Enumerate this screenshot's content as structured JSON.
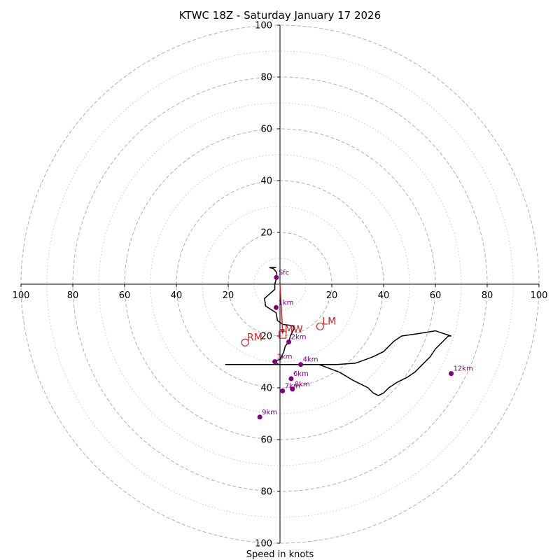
{
  "chart_data": {
    "type": "line",
    "title": "KTWC 18Z - Saturday January 17 2026",
    "xlabel": "Speed in knots",
    "ylabel": "",
    "xlim": [
      -100,
      100
    ],
    "ylim": [
      -100,
      100
    ],
    "rings_major": [
      20,
      40,
      60,
      80,
      100
    ],
    "rings_minor": [
      10,
      30,
      50,
      70,
      90
    ],
    "x_tick_labels": [
      "100",
      "80",
      "60",
      "40",
      "20",
      "20",
      "40",
      "60",
      "80",
      "100"
    ],
    "x_tick_values": [
      -100,
      -80,
      -60,
      -40,
      -20,
      20,
      40,
      60,
      80,
      100
    ],
    "y_tick_labels": [
      "100",
      "80",
      "60",
      "40",
      "20",
      "20",
      "40",
      "60",
      "80",
      "100"
    ],
    "y_tick_values": [
      100,
      80,
      60,
      40,
      20,
      -20,
      -40,
      -60,
      -80,
      -100
    ],
    "hodograph": {
      "u": [
        -1.5,
        -4,
        -2.5,
        -1.3,
        -1.2,
        -2,
        -2,
        -6,
        -5.5,
        -1.5,
        -1,
        1,
        5,
        5.5,
        4,
        3.5,
        2,
        1.5,
        1,
        0.5,
        0.3,
        -1.5,
        -2,
        -0.5,
        8,
        22,
        29,
        32,
        36,
        40,
        42,
        44,
        47,
        54,
        60,
        66,
        65,
        60,
        58,
        55,
        52,
        49,
        45,
        42,
        40,
        38,
        36,
        34,
        28,
        23,
        15,
        6,
        3,
        3,
        2,
        0,
        -1,
        -3,
        -4,
        -6,
        -8,
        -10,
        -12,
        -16,
        -18,
        -19.5,
        -21,
        -19,
        -15,
        -11,
        -8,
        -4,
        2,
        4,
        5,
        6,
        5
      ],
      "v": [
        6.4,
        6.4,
        6,
        4.5,
        3,
        0,
        -2,
        -5.5,
        -8.5,
        -11,
        -14,
        -15.5,
        -16,
        -17,
        -20,
        -22,
        -24,
        -26,
        -27,
        -28,
        -29,
        -29.5,
        -30,
        -31,
        -31,
        -31,
        -30.5,
        -29.5,
        -28,
        -26,
        -24,
        -22,
        -20,
        -19,
        -18,
        -20,
        -20,
        -25,
        -28,
        -31,
        -34,
        -36,
        -38,
        -40,
        -42,
        -43,
        -42,
        -40,
        -37,
        -34,
        -31,
        -31,
        -31,
        -31,
        -31,
        -31,
        -31,
        -31,
        -31,
        -31,
        -31,
        -31,
        -31,
        -31,
        -31,
        -31,
        -31,
        -31,
        -31,
        -31,
        -31,
        -31,
        -31,
        -31,
        -31,
        -31,
        -31
      ]
    },
    "height_points": [
      {
        "label": "Sfc",
        "u": -1.4,
        "v": 2.6
      },
      {
        "label": "1km",
        "u": -1.5,
        "v": -9
      },
      {
        "label": "2km",
        "u": 3.4,
        "v": -22.3
      },
      {
        "label": "3km",
        "u": -2,
        "v": -29.9
      },
      {
        "label": "4km",
        "u": 8,
        "v": -31
      },
      {
        "label": "6km",
        "u": 4.3,
        "v": -36.5
      },
      {
        "label": "7km",
        "u": 1,
        "v": -41.2
      },
      {
        "label": "8km",
        "u": 4.8,
        "v": -40.5
      },
      {
        "label": "9km",
        "u": -7.8,
        "v": -51.3
      },
      {
        "label": "12km",
        "u": 66.1,
        "v": -34.5
      }
    ],
    "markers": [
      {
        "label": "RM",
        "u": -13.5,
        "v": -22.5,
        "shape": "circle"
      },
      {
        "label": "LM",
        "u": 15.5,
        "v": -16.3,
        "shape": "circle"
      },
      {
        "label": "MW",
        "u": 1,
        "v": -19.5,
        "shape": "square"
      }
    ],
    "storm_vector": {
      "from_u": 0,
      "from_v": 0,
      "to_u": 1,
      "to_v": -19.5
    },
    "colors": {
      "hodograph": "#000000",
      "height_points": "#800080",
      "markers": "#c8282a",
      "rings": "#b0b0b0",
      "axes": "#000000"
    }
  }
}
